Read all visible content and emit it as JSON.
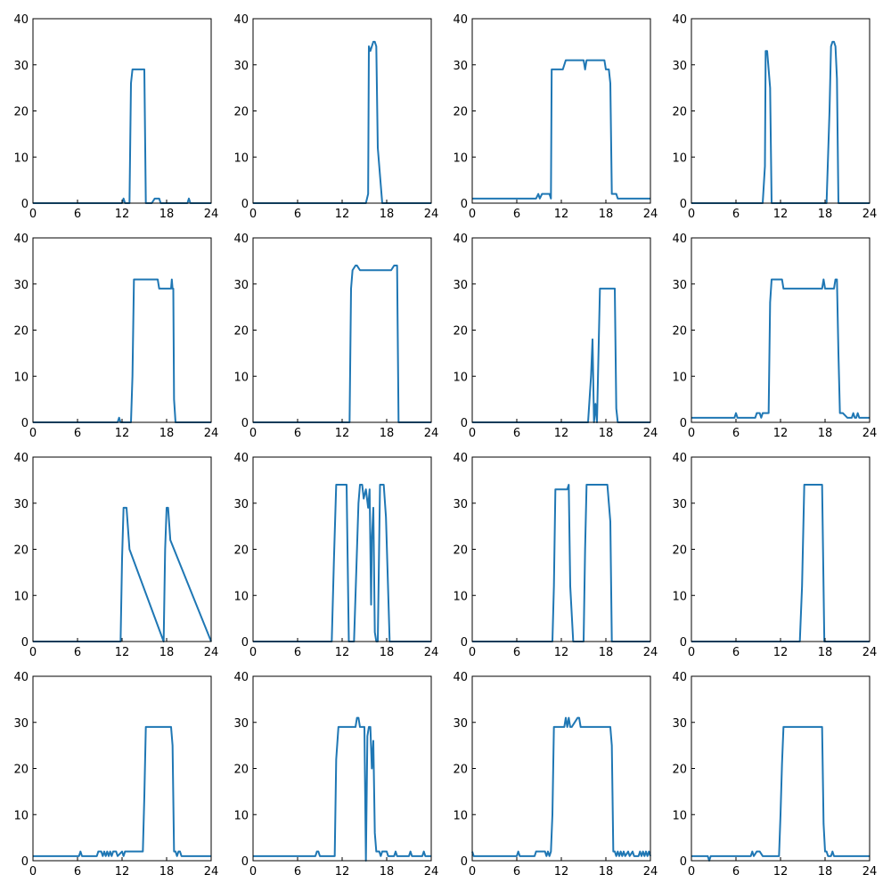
{
  "figure": {
    "line_color": "#1f77b4",
    "axis_color": "#000000",
    "background": "#ffffff",
    "layout": {
      "rows": 4,
      "cols": 4
    }
  },
  "chart_data": [
    {
      "type": "line",
      "xlim": [
        0,
        24
      ],
      "ylim": [
        0,
        40
      ],
      "xticks": [
        "0",
        "6",
        "12",
        "18",
        "24"
      ],
      "yticks": [
        "0",
        "10",
        "20",
        "30",
        "40"
      ],
      "grid": false,
      "series": [
        {
          "x": [
            0,
            12,
            12.2,
            12.4,
            13,
            13.2,
            13.4,
            15,
            15.2,
            16,
            16.4,
            16.8,
            17,
            17.2,
            20.8,
            21,
            21.2,
            24
          ],
          "y": [
            0,
            0,
            1,
            0,
            0,
            26,
            29,
            29,
            0,
            0,
            1,
            1,
            1,
            0,
            0,
            1,
            0,
            0
          ]
        }
      ]
    },
    {
      "type": "line",
      "xlim": [
        0,
        24
      ],
      "ylim": [
        0,
        40
      ],
      "xticks": [
        "0",
        "6",
        "12",
        "18",
        "24"
      ],
      "yticks": [
        "0",
        "10",
        "20",
        "30",
        "40"
      ],
      "grid": false,
      "series": [
        {
          "x": [
            0,
            15.2,
            15.5,
            15.6,
            15.8,
            16,
            16.2,
            16.4,
            16.6,
            16.8,
            17.2,
            17.4,
            24
          ],
          "y": [
            0,
            0,
            2,
            34,
            33,
            34,
            35,
            35,
            34,
            12,
            4,
            0,
            0
          ]
        }
      ]
    },
    {
      "type": "line",
      "xlim": [
        0,
        24
      ],
      "ylim": [
        0,
        40
      ],
      "xticks": [
        "0",
        "6",
        "12",
        "18",
        "24"
      ],
      "yticks": [
        "0",
        "10",
        "20",
        "30",
        "40"
      ],
      "grid": false,
      "series": [
        {
          "x": [
            0,
            8.6,
            8.9,
            9.1,
            9.4,
            10.4,
            10.6,
            10.7,
            11,
            12.2,
            12.6,
            15,
            15.2,
            15.4,
            17.8,
            18,
            18.4,
            18.6,
            18.8,
            19.4,
            19.6,
            24
          ],
          "y": [
            1,
            1,
            2,
            1,
            2,
            2,
            1,
            29,
            29,
            29,
            31,
            31,
            29,
            31,
            31,
            29,
            29,
            26,
            2,
            2,
            1,
            1
          ]
        }
      ]
    },
    {
      "type": "line",
      "xlim": [
        0,
        24
      ],
      "ylim": [
        0,
        40
      ],
      "xticks": [
        "0",
        "6",
        "12",
        "18",
        "24"
      ],
      "yticks": [
        "0",
        "10",
        "20",
        "30",
        "40"
      ],
      "grid": false,
      "series": [
        {
          "x": [
            0,
            9.6,
            9.9,
            10,
            10.2,
            10.6,
            10.8,
            11,
            18.2,
            18.6,
            18.8,
            19,
            19.2,
            19.4,
            19.6,
            19.8,
            24
          ],
          "y": [
            0,
            0,
            8,
            33,
            33,
            25,
            0,
            0,
            0,
            20,
            34,
            35,
            35,
            34,
            27,
            0,
            0
          ]
        }
      ]
    },
    {
      "type": "line",
      "xlim": [
        0,
        24
      ],
      "ylim": [
        0,
        40
      ],
      "xticks": [
        "0",
        "6",
        "12",
        "18",
        "24"
      ],
      "yticks": [
        "0",
        "10",
        "20",
        "30",
        "40"
      ],
      "grid": false,
      "series": [
        {
          "x": [
            0,
            11.4,
            11.6,
            11.8,
            13.2,
            13.4,
            13.6,
            16.8,
            17,
            18.6,
            18.7,
            18.8,
            18.9,
            19,
            19.2,
            24
          ],
          "y": [
            0,
            0,
            1,
            0,
            0,
            10,
            31,
            31,
            29,
            29,
            31,
            29,
            29,
            5,
            0,
            0
          ]
        }
      ]
    },
    {
      "type": "line",
      "xlim": [
        0,
        24
      ],
      "ylim": [
        0,
        40
      ],
      "xticks": [
        "0",
        "6",
        "12",
        "18",
        "24"
      ],
      "yticks": [
        "0",
        "10",
        "20",
        "30",
        "40"
      ],
      "grid": false,
      "series": [
        {
          "x": [
            0,
            13,
            13.2,
            13.4,
            13.8,
            14,
            14.4,
            18.6,
            19,
            19.4,
            19.6,
            24
          ],
          "y": [
            0,
            0,
            29,
            33,
            34,
            34,
            33,
            33,
            34,
            34,
            0,
            0
          ]
        }
      ]
    },
    {
      "type": "line",
      "xlim": [
        0,
        24
      ],
      "ylim": [
        0,
        40
      ],
      "xticks": [
        "0",
        "6",
        "12",
        "18",
        "24"
      ],
      "yticks": [
        "0",
        "10",
        "20",
        "30",
        "40"
      ],
      "grid": false,
      "series": [
        {
          "x": [
            0,
            15.6,
            16,
            16.2,
            16.4,
            16.6,
            16.8,
            17.2,
            17.4,
            19.2,
            19.4,
            19.6,
            24
          ],
          "y": [
            0,
            0,
            10,
            18,
            0,
            4,
            0,
            29,
            29,
            29,
            3,
            0,
            0
          ]
        }
      ]
    },
    {
      "type": "line",
      "xlim": [
        0,
        24
      ],
      "ylim": [
        0,
        40
      ],
      "xticks": [
        "0",
        "6",
        "12",
        "18",
        "24"
      ],
      "yticks": [
        "0",
        "10",
        "20",
        "30",
        "40"
      ],
      "grid": false,
      "series": [
        {
          "x": [
            0,
            5.8,
            6,
            6.2,
            8.6,
            8.8,
            9.2,
            9.4,
            9.6,
            10.4,
            10.6,
            10.8,
            11,
            12.2,
            12.4,
            17.6,
            17.8,
            18,
            19.2,
            19.4,
            19.6,
            19.8,
            20,
            20.2,
            20.4,
            21,
            21.2,
            21.6,
            21.8,
            22,
            22.2,
            22.4,
            22.6,
            22.8,
            24
          ],
          "y": [
            1,
            1,
            2,
            1,
            1,
            2,
            2,
            1,
            2,
            2,
            26,
            31,
            31,
            31,
            29,
            29,
            31,
            29,
            29,
            31,
            31,
            15,
            2,
            2,
            2,
            1,
            1,
            1,
            2,
            1,
            1,
            2,
            1,
            1,
            1
          ]
        }
      ]
    },
    {
      "type": "line",
      "xlim": [
        0,
        24
      ],
      "ylim": [
        0,
        40
      ],
      "xticks": [
        "0",
        "6",
        "12",
        "18",
        "24"
      ],
      "yticks": [
        "0",
        "10",
        "20",
        "30",
        "40"
      ],
      "grid": false,
      "series": [
        {
          "x": [
            0,
            11.8,
            12,
            12.2,
            12.6,
            13,
            17.6,
            17.8,
            18,
            18.2,
            18.5,
            24
          ],
          "y": [
            0,
            0,
            18,
            29,
            29,
            20,
            0,
            20,
            29,
            29,
            22,
            0
          ]
        }
      ]
    },
    {
      "type": "line",
      "xlim": [
        0,
        24
      ],
      "ylim": [
        0,
        40
      ],
      "xticks": [
        "0",
        "6",
        "12",
        "18",
        "24"
      ],
      "yticks": [
        "0",
        "10",
        "20",
        "30",
        "40"
      ],
      "grid": false,
      "series": [
        {
          "x": [
            0,
            10.6,
            10.9,
            11.2,
            12.6,
            12.9,
            13.6,
            14.2,
            14.4,
            14.7,
            14.9,
            15.2,
            15.5,
            15.7,
            15.9,
            16,
            16.2,
            16.4,
            16.6,
            16.8,
            17.1,
            17.6,
            17.9,
            18.4,
            18.8,
            24
          ],
          "y": [
            0,
            0,
            18,
            34,
            34,
            0,
            0,
            30,
            34,
            34,
            31,
            33,
            29,
            33,
            8,
            22,
            29,
            2,
            0,
            0,
            34,
            34,
            27,
            0,
            0,
            0
          ]
        }
      ]
    },
    {
      "type": "line",
      "xlim": [
        0,
        24
      ],
      "ylim": [
        0,
        40
      ],
      "xticks": [
        "0",
        "6",
        "12",
        "18",
        "24"
      ],
      "yticks": [
        "0",
        "10",
        "20",
        "30",
        "40"
      ],
      "grid": false,
      "series": [
        {
          "x": [
            0,
            10.8,
            11,
            11.2,
            12.8,
            13,
            13.2,
            13.6,
            15,
            15.2,
            15.4,
            18.2,
            18.6,
            18.8,
            24
          ],
          "y": [
            0,
            0,
            12,
            33,
            33,
            34,
            12,
            0,
            0,
            20,
            34,
            34,
            26,
            0,
            0
          ]
        }
      ]
    },
    {
      "type": "line",
      "xlim": [
        0,
        24
      ],
      "ylim": [
        0,
        40
      ],
      "xticks": [
        "0",
        "6",
        "12",
        "18",
        "24"
      ],
      "yticks": [
        "0",
        "10",
        "20",
        "30",
        "40"
      ],
      "grid": false,
      "series": [
        {
          "x": [
            0,
            14.6,
            14.9,
            15.2,
            17.6,
            17.9,
            24
          ],
          "y": [
            0,
            0,
            12,
            34,
            34,
            0,
            0
          ]
        }
      ]
    },
    {
      "type": "line",
      "xlim": [
        0,
        24
      ],
      "ylim": [
        0,
        40
      ],
      "xticks": [
        "0",
        "6",
        "12",
        "18",
        "24"
      ],
      "yticks": [
        "0",
        "10",
        "20",
        "30",
        "40"
      ],
      "grid": false,
      "series": [
        {
          "x": [
            0,
            6.2,
            6.4,
            6.6,
            8.6,
            8.8,
            9.2,
            9.4,
            9.6,
            9.8,
            10,
            10.2,
            10.4,
            10.6,
            10.8,
            11,
            11.2,
            11.4,
            12,
            12.2,
            12.4,
            14.8,
            15,
            15.2,
            18.6,
            18.8,
            19,
            19.2,
            19.4,
            19.6,
            19.8,
            20,
            24
          ],
          "y": [
            1,
            1,
            2,
            1,
            1,
            2,
            2,
            1,
            2,
            1,
            2,
            1,
            2,
            1,
            2,
            2,
            2,
            1,
            2,
            1,
            2,
            2,
            14,
            29,
            29,
            25,
            2,
            2,
            1,
            2,
            2,
            1,
            1
          ]
        }
      ]
    },
    {
      "type": "line",
      "xlim": [
        0,
        24
      ],
      "ylim": [
        0,
        40
      ],
      "xticks": [
        "0",
        "6",
        "12",
        "18",
        "24"
      ],
      "yticks": [
        "0",
        "10",
        "20",
        "30",
        "40"
      ],
      "grid": false,
      "series": [
        {
          "x": [
            0,
            8.4,
            8.6,
            8.8,
            9,
            11,
            11.2,
            11.5,
            13.8,
            14,
            14.2,
            14.4,
            15,
            15.2,
            15.4,
            15.6,
            15.8,
            16,
            16.2,
            16.4,
            16.6,
            16.8,
            17,
            17.2,
            17.4,
            17.6,
            18,
            18.2,
            19,
            19.2,
            19.4,
            19.6,
            21,
            21.2,
            21.4,
            22.8,
            23,
            23.2,
            24
          ],
          "y": [
            1,
            1,
            2,
            2,
            1,
            1,
            22,
            29,
            29,
            31,
            31,
            29,
            29,
            0,
            27,
            29,
            29,
            20,
            26,
            6,
            2,
            2,
            2,
            1,
            2,
            2,
            2,
            1,
            1,
            2,
            1,
            1,
            1,
            2,
            1,
            1,
            2,
            1,
            1
          ]
        }
      ]
    },
    {
      "type": "line",
      "xlim": [
        0,
        24
      ],
      "ylim": [
        0,
        40
      ],
      "xticks": [
        "0",
        "6",
        "12",
        "18",
        "24"
      ],
      "yticks": [
        "0",
        "10",
        "20",
        "30",
        "40"
      ],
      "grid": false,
      "series": [
        {
          "x": [
            0,
            0.2,
            0.4,
            0.6,
            6,
            6.2,
            6.4,
            8.4,
            8.6,
            9.8,
            10,
            10.2,
            10.4,
            10.6,
            10.8,
            11,
            11.2,
            12.4,
            12.6,
            12.8,
            13,
            13.2,
            13.4,
            14.2,
            14.4,
            14.6,
            14.8,
            15,
            18.6,
            18.8,
            19,
            19.2,
            19.4,
            19.6,
            19.8,
            20,
            20.2,
            20.4,
            20.6,
            21,
            21.2,
            21.6,
            21.8,
            22.4,
            22.6,
            22.8,
            23,
            23.2,
            23.4,
            23.6,
            23.8,
            24
          ],
          "y": [
            2,
            1,
            1,
            1,
            1,
            2,
            1,
            1,
            2,
            2,
            1,
            2,
            1,
            2,
            10,
            29,
            29,
            29,
            31,
            29,
            31,
            29,
            29,
            31,
            31,
            29,
            29,
            29,
            29,
            25,
            2,
            2,
            1,
            2,
            1,
            2,
            1,
            2,
            1,
            2,
            1,
            2,
            1,
            1,
            2,
            1,
            2,
            1,
            2,
            1,
            2,
            1
          ]
        }
      ]
    },
    {
      "type": "line",
      "xlim": [
        0,
        24
      ],
      "ylim": [
        0,
        40
      ],
      "xticks": [
        "0",
        "6",
        "12",
        "18",
        "24"
      ],
      "yticks": [
        "0",
        "10",
        "20",
        "30",
        "40"
      ],
      "grid": false,
      "series": [
        {
          "x": [
            0,
            2.2,
            2.4,
            2.6,
            8,
            8.2,
            8.4,
            8.8,
            9.2,
            9.6,
            10,
            10.2,
            11.8,
            12,
            12.2,
            12.4,
            17.6,
            17.8,
            18,
            18.2,
            18.4,
            18.8,
            19,
            19.2,
            24
          ],
          "y": [
            1,
            1,
            0,
            1,
            1,
            2,
            1,
            2,
            2,
            1,
            1,
            1,
            1,
            10,
            21,
            29,
            29,
            8,
            2,
            2,
            1,
            1,
            2,
            1,
            1
          ]
        }
      ]
    }
  ]
}
